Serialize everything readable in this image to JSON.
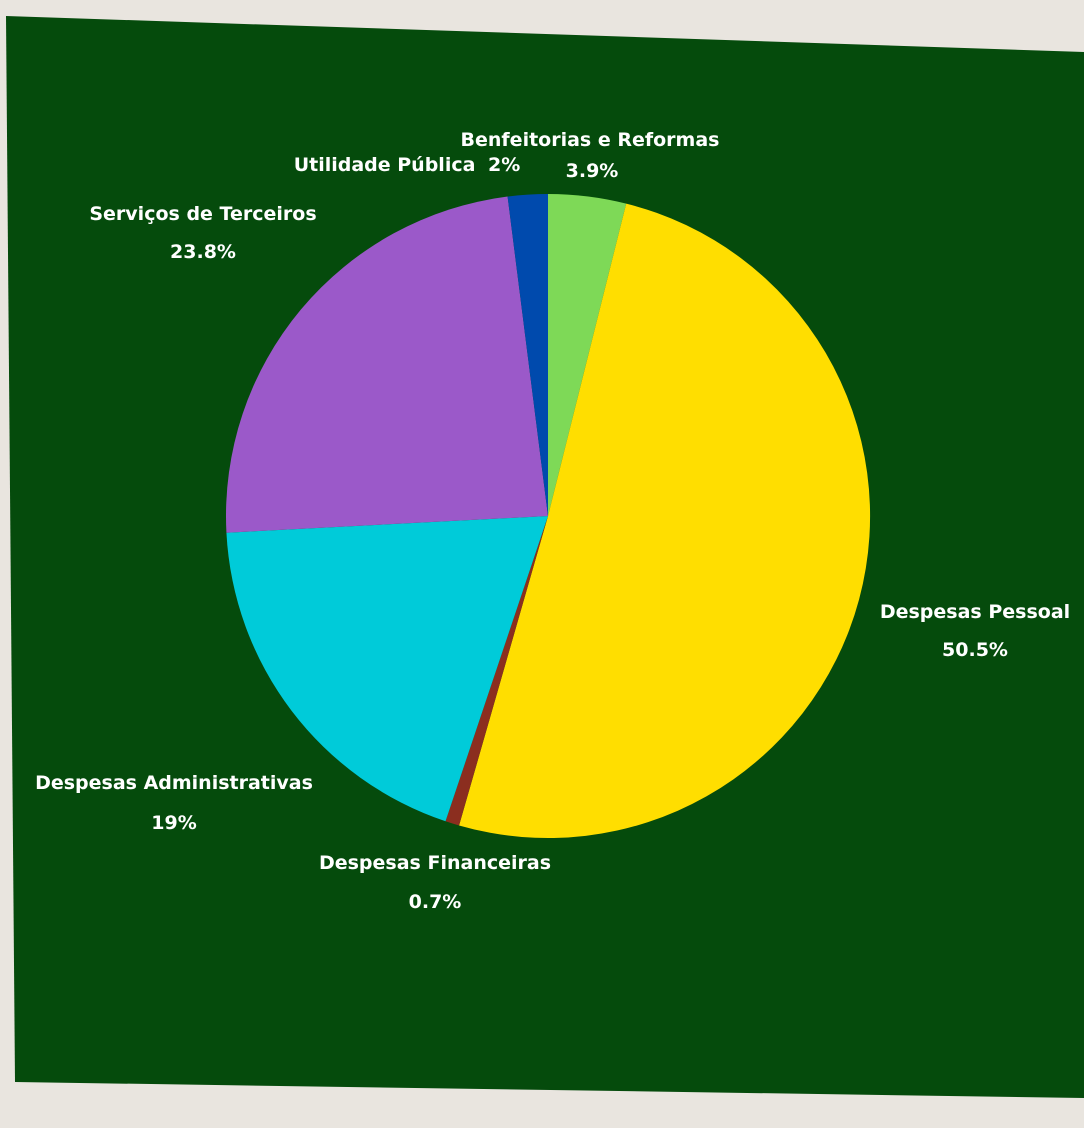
{
  "colors": {
    "page_background": "#e9e5df",
    "panel_background": "#054b0c",
    "label_text": "#ffffff"
  },
  "chart_data": {
    "type": "pie",
    "title": "",
    "start_angle_deg": 0,
    "direction": "clockwise",
    "slices": [
      {
        "name": "Benfeitorias e Reformas",
        "value": 3.9,
        "display": "3.9%",
        "color": "#7ed957"
      },
      {
        "name": "Despesas Pessoal",
        "value": 50.5,
        "display": "50.5%",
        "color": "#ffde00"
      },
      {
        "name": "Despesas Financeiras",
        "value": 0.7,
        "display": "0.7%",
        "color": "#8b2e1f"
      },
      {
        "name": "Despesas Administrativas",
        "value": 19,
        "display": "19%",
        "color": "#00cbd9"
      },
      {
        "name": "Serviços de Terceiros",
        "value": 23.8,
        "display": "23.8%",
        "color": "#9b59c9"
      },
      {
        "name": "Utilidade Pública",
        "value": 2,
        "display": "2%",
        "color": "#004aad"
      }
    ]
  }
}
